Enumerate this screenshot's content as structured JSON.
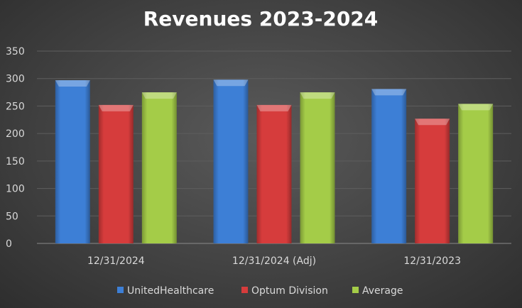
{
  "chart_data": {
    "type": "bar",
    "title": "Revenues 2023-2024",
    "categories": [
      "12/31/2024",
      "12/31/2024 (Adj)",
      "12/31/2023"
    ],
    "series": [
      {
        "name": "UnitedHealthcare",
        "values": [
          297,
          298,
          281
        ],
        "color": "#3d7fd6"
      },
      {
        "name": "Optum Division",
        "values": [
          252,
          252,
          227
        ],
        "color": "#d63c3c"
      },
      {
        "name": "Average",
        "values": [
          275,
          275,
          254
        ],
        "color": "#a4cc48"
      }
    ],
    "ylim": [
      0,
      350
    ],
    "yticks": [
      0,
      50,
      100,
      150,
      200,
      250,
      300,
      350
    ],
    "grid": true,
    "legend": "bottom",
    "xlabel": "",
    "ylabel": ""
  }
}
